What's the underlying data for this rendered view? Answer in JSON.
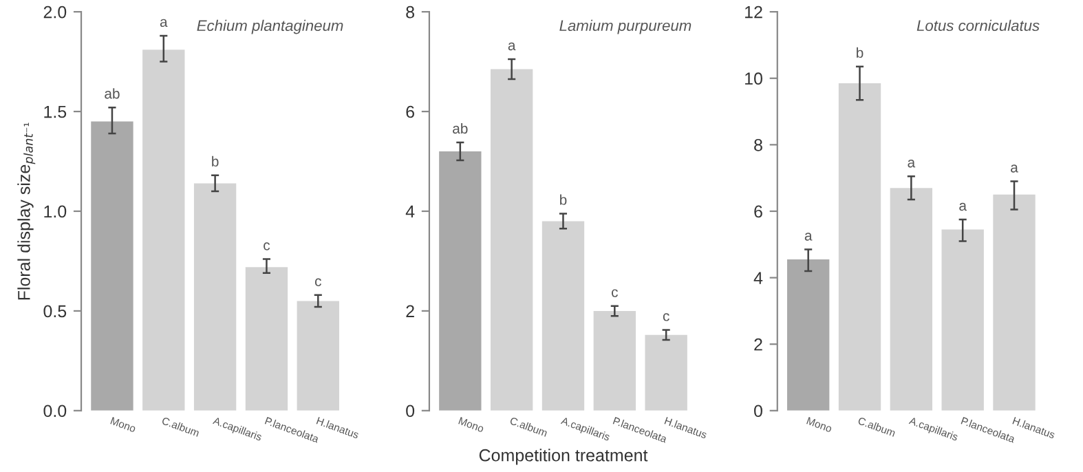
{
  "chart_data": [
    {
      "type": "bar",
      "title": "Echium plantagineum",
      "ylabel": "Floral display size$_{plant⁻¹}$",
      "categories": [
        "Mono",
        "C.album",
        "A.capillaris",
        "P.lanceolata",
        "H.lanatus"
      ],
      "values": [
        1.45,
        1.81,
        1.14,
        0.72,
        0.55
      ],
      "colors": [
        "#a9a9a9",
        "#d3d3d3",
        "#d3d3d3",
        "#d3d3d3",
        "#d3d3d3"
      ],
      "errors": [
        [
          1.39,
          1.52
        ],
        [
          1.75,
          1.88
        ],
        [
          1.1,
          1.18
        ],
        [
          0.69,
          0.76
        ],
        [
          0.52,
          0.58
        ]
      ],
      "ylim": [
        0,
        2.0
      ],
      "yticks": [
        {
          "value": 0,
          "label": "0.0"
        },
        0.5,
        {
          "value": 1,
          "label": "1.0"
        },
        1.5,
        {
          "value": 2,
          "label": "2.0"
        }
      ],
      "grid": false,
      "legend": false,
      "annotations": [
        {
          "text": "ab",
          "x": "Mono",
          "y": 1.52
        },
        {
          "text": "a",
          "x": "C.album",
          "y": 1.88
        },
        {
          "text": "b",
          "x": "A.capillaris",
          "y": 1.18
        },
        {
          "text": "c",
          "x": "P.lanceolata",
          "y": 0.76
        },
        {
          "text": "c",
          "x": "H.lanatus",
          "y": 0.58
        }
      ]
    },
    {
      "type": "bar",
      "title": "Lamium purpureum",
      "xlabel": "Competition treatment",
      "categories": [
        "Mono",
        "C.album",
        "A.capillaris",
        "P.lanceolata",
        "H.lanatus"
      ],
      "values": [
        5.2,
        6.85,
        3.8,
        2.0,
        1.52
      ],
      "colors": [
        "#a9a9a9",
        "#d3d3d3",
        "#d3d3d3",
        "#d3d3d3",
        "#d3d3d3"
      ],
      "errors": [
        [
          5.02,
          5.38
        ],
        [
          6.65,
          7.05
        ],
        [
          3.65,
          3.95
        ],
        [
          1.9,
          2.1
        ],
        [
          1.42,
          1.62
        ]
      ],
      "ylim": [
        0,
        8
      ],
      "yticks": [
        0,
        2,
        4,
        6,
        8
      ],
      "grid": false,
      "legend": false,
      "annotations": [
        {
          "text": "ab",
          "x": "Mono",
          "y": 5.38
        },
        {
          "text": "a",
          "x": "C.album",
          "y": 7.05
        },
        {
          "text": "b",
          "x": "A.capillaris",
          "y": 3.95
        },
        {
          "text": "c",
          "x": "P.lanceolata",
          "y": 2.1
        },
        {
          "text": "c",
          "x": "H.lanatus",
          "y": 1.62
        }
      ]
    },
    {
      "type": "bar",
      "title": "Lotus corniculatus",
      "categories": [
        "Mono",
        "C.album",
        "A.capillaris",
        "P.lanceolata",
        "H.lanatus"
      ],
      "values": [
        4.55,
        9.85,
        6.7,
        5.45,
        6.5
      ],
      "colors": [
        "#a9a9a9",
        "#d3d3d3",
        "#d3d3d3",
        "#d3d3d3",
        "#d3d3d3"
      ],
      "errors": [
        [
          4.2,
          4.85
        ],
        [
          9.35,
          10.35
        ],
        [
          6.35,
          7.05
        ],
        [
          5.1,
          5.75
        ],
        [
          6.05,
          6.9
        ]
      ],
      "ylim": [
        0,
        12
      ],
      "yticks": [
        0,
        2,
        4,
        6,
        8,
        10,
        12
      ],
      "grid": false,
      "legend": false,
      "annotations": [
        {
          "text": "a",
          "x": "Mono",
          "y": 4.85
        },
        {
          "text": "b",
          "x": "C.album",
          "y": 10.35
        },
        {
          "text": "a",
          "x": "A.capillaris",
          "y": 7.05
        },
        {
          "text": "a",
          "x": "P.lanceolata",
          "y": 5.75
        },
        {
          "text": "a",
          "x": "H.lanatus",
          "y": 6.9
        }
      ]
    }
  ]
}
